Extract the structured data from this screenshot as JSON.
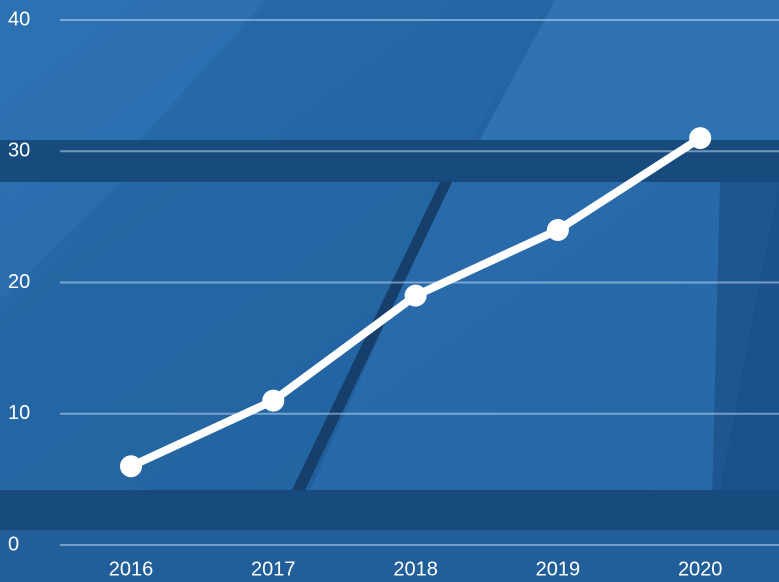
{
  "chart_data": {
    "type": "line",
    "categories": [
      "2016",
      "2017",
      "2018",
      "2019",
      "2020"
    ],
    "series": [
      {
        "color": "#ffffff",
        "values": [
          6,
          11,
          19,
          24,
          31
        ]
      }
    ],
    "ylim": [
      0,
      40
    ],
    "yticks": [
      0,
      10,
      20,
      30,
      40
    ],
    "grid": true
  }
}
